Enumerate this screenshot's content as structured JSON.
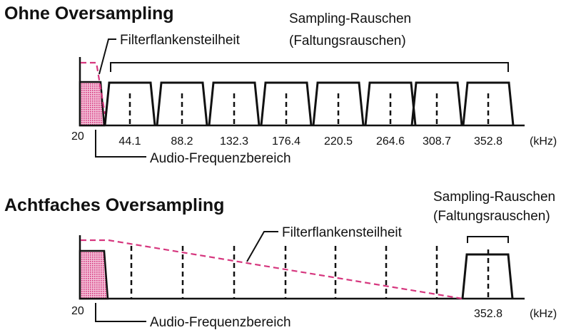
{
  "top": {
    "title": "Ohne Oversampling",
    "filter_label": "Filterflankensteilheit",
    "noise_label_line1": "Sampling-Rauschen",
    "noise_label_line2": "(Faltungsrauschen)",
    "audio_label": "Audio-Frequenzbereich",
    "audio_edge_tick": "20",
    "unit": "(kHz)",
    "ticks": [
      "44.1",
      "88.2",
      "132.3",
      "176.4",
      "220.5",
      "264.6",
      "308.7",
      "352.8"
    ]
  },
  "bottom": {
    "title": "Achtfaches Oversampling",
    "filter_label": "Filterflankensteilheit",
    "noise_label_line1": "Sampling-Rauschen",
    "noise_label_line2": "(Faltungsrauschen)",
    "audio_label": "Audio-Frequenzbereich",
    "audio_edge_tick": "20",
    "unit": "(kHz)",
    "ticks": [
      "352.8"
    ]
  },
  "colors": {
    "filter_curve": "#d6367e",
    "audio_fill": "#e0559a"
  }
}
